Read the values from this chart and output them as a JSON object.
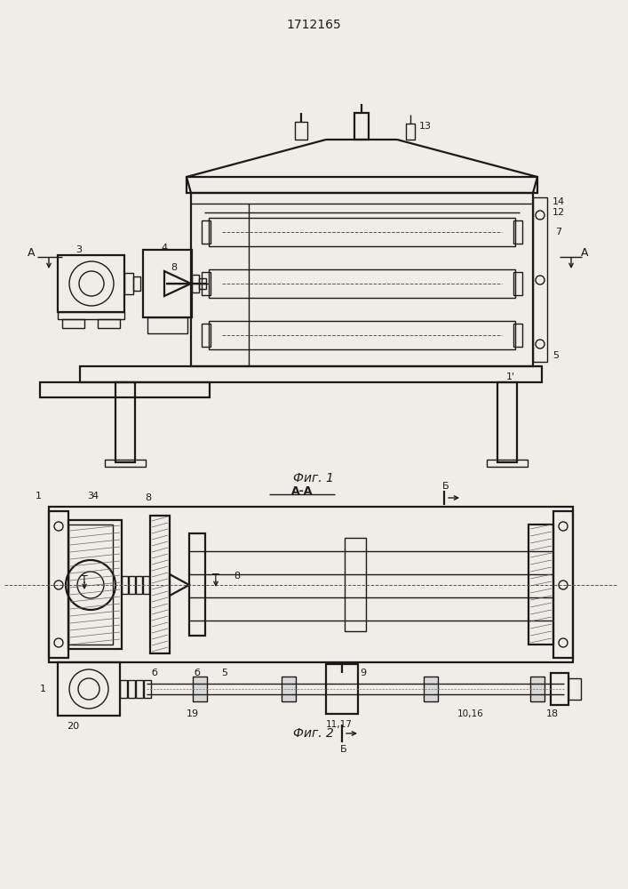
{
  "title": "1712165",
  "fig1_caption": "Фиг. 1",
  "fig2_caption": "Фиг. 2",
  "bg_color": "#f0ede8",
  "line_color": "#1a1a1a",
  "lw": 1.0,
  "lw2": 1.6
}
